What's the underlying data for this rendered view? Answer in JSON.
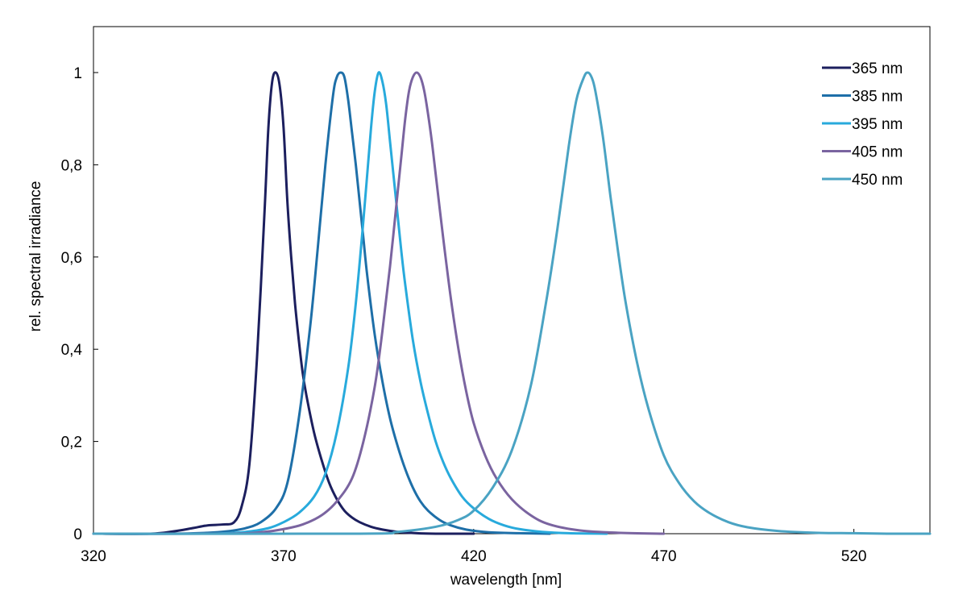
{
  "chart_data": {
    "type": "line",
    "title": "",
    "xlabel": "wavelength [nm]",
    "ylabel": "rel. spectral irradiance",
    "xlim": [
      320,
      540
    ],
    "ylim": [
      0,
      1.1
    ],
    "x_ticks": [
      320,
      370,
      420,
      470,
      520
    ],
    "x_tick_labels": [
      "320",
      "370",
      "420",
      "470",
      "520"
    ],
    "y_ticks": [
      0,
      0.2,
      0.4,
      0.6,
      0.8,
      1
    ],
    "y_tick_labels": [
      "0",
      "0,2",
      "0,4",
      "0,6",
      "0,8",
      "1"
    ],
    "grid": false,
    "legend_position": "top-right",
    "series": [
      {
        "name": "365 nm",
        "color": "#1c1f5e",
        "x": [
          320,
          335,
          341,
          346,
          350,
          354,
          357,
          359,
          361,
          363,
          365,
          366,
          367,
          368,
          369,
          370,
          371,
          372,
          373,
          374,
          375,
          376,
          378,
          380,
          382,
          384,
          386,
          388,
          390,
          393,
          396,
          400,
          405,
          410,
          420
        ],
        "y": [
          0,
          0,
          0.005,
          0.012,
          0.018,
          0.02,
          0.025,
          0.06,
          0.15,
          0.38,
          0.7,
          0.88,
          0.98,
          1.0,
          0.97,
          0.88,
          0.72,
          0.6,
          0.5,
          0.42,
          0.35,
          0.3,
          0.22,
          0.16,
          0.11,
          0.075,
          0.05,
          0.035,
          0.025,
          0.015,
          0.009,
          0.004,
          0.001,
          0,
          0
        ]
      },
      {
        "name": "385 nm",
        "color": "#1e6fa8",
        "x": [
          320,
          340,
          350,
          355,
          360,
          364,
          368,
          371,
          374,
          377,
          379,
          381,
          383,
          384,
          385,
          386,
          387,
          388,
          389,
          390,
          391,
          392,
          394,
          396,
          398,
          400,
          402,
          404,
          406,
          408,
          411,
          414,
          418,
          424,
          432,
          440
        ],
        "y": [
          0,
          0,
          0.002,
          0.005,
          0.012,
          0.025,
          0.055,
          0.11,
          0.25,
          0.45,
          0.62,
          0.8,
          0.95,
          0.99,
          1.0,
          0.99,
          0.94,
          0.87,
          0.8,
          0.72,
          0.64,
          0.56,
          0.43,
          0.33,
          0.25,
          0.19,
          0.14,
          0.1,
          0.07,
          0.05,
          0.03,
          0.018,
          0.009,
          0.003,
          0.001,
          0
        ]
      },
      {
        "name": "395 nm",
        "color": "#28aadc",
        "x": [
          320,
          350,
          360,
          366,
          370,
          374,
          378,
          381,
          384,
          387,
          389,
          391,
          393,
          394,
          395,
          396,
          397,
          398,
          399,
          400,
          401,
          402,
          404,
          406,
          408,
          410,
          412,
          414,
          417,
          420,
          424,
          428,
          432,
          438,
          445,
          455
        ],
        "y": [
          0,
          0,
          0.004,
          0.012,
          0.025,
          0.045,
          0.08,
          0.13,
          0.22,
          0.36,
          0.5,
          0.68,
          0.88,
          0.96,
          1.0,
          0.98,
          0.93,
          0.85,
          0.77,
          0.69,
          0.61,
          0.54,
          0.42,
          0.33,
          0.26,
          0.2,
          0.155,
          0.12,
          0.08,
          0.055,
          0.032,
          0.018,
          0.01,
          0.004,
          0.001,
          0
        ]
      },
      {
        "name": "405 nm",
        "color": "#7a64a0",
        "x": [
          320,
          355,
          365,
          370,
          375,
          380,
          384,
          388,
          391,
          394,
          396,
          398,
          400,
          401,
          402,
          403,
          404,
          405,
          406,
          407,
          408,
          409,
          410,
          412,
          414,
          416,
          418,
          420,
          423,
          426,
          430,
          435,
          440,
          448,
          458,
          470
        ],
        "y": [
          0,
          0,
          0.004,
          0.01,
          0.02,
          0.04,
          0.07,
          0.12,
          0.2,
          0.32,
          0.44,
          0.58,
          0.74,
          0.82,
          0.9,
          0.96,
          0.99,
          1.0,
          0.99,
          0.96,
          0.91,
          0.85,
          0.78,
          0.64,
          0.51,
          0.4,
          0.31,
          0.24,
          0.17,
          0.12,
          0.075,
          0.04,
          0.02,
          0.007,
          0.002,
          0
        ]
      },
      {
        "name": "450 nm",
        "color": "#4aa3c3",
        "x": [
          320,
          390,
          400,
          410,
          416,
          420,
          425,
          430,
          435,
          439,
          442,
          445,
          447,
          449,
          450,
          451,
          452,
          454,
          456,
          458,
          460,
          463,
          466,
          470,
          474,
          478,
          482,
          487,
          492,
          500,
          510,
          520,
          530,
          540
        ],
        "y": [
          0,
          0,
          0.004,
          0.015,
          0.03,
          0.05,
          0.1,
          0.18,
          0.32,
          0.5,
          0.66,
          0.84,
          0.94,
          0.99,
          1.0,
          0.99,
          0.96,
          0.86,
          0.73,
          0.61,
          0.5,
          0.37,
          0.27,
          0.17,
          0.11,
          0.07,
          0.045,
          0.025,
          0.014,
          0.006,
          0.002,
          0.001,
          0,
          0
        ]
      }
    ]
  }
}
